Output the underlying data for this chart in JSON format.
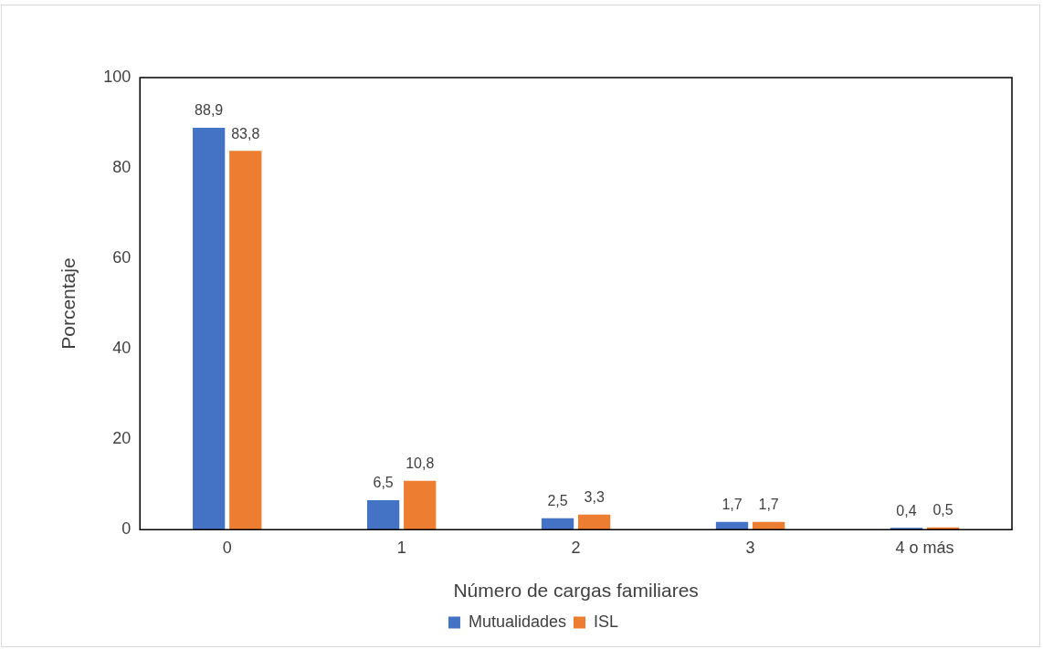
{
  "chart_data": {
    "type": "bar",
    "xlabel": "Número de cargas familiares",
    "ylabel": "Porcentaje",
    "categories": [
      "0",
      "1",
      "2",
      "3",
      "4 o más"
    ],
    "series": [
      {
        "name": "Mutualidades",
        "color": "#4472c4",
        "values": [
          88.9,
          6.5,
          2.5,
          1.7,
          0.4
        ],
        "value_labels": [
          "88,9",
          "6,5",
          "2,5",
          "1,7",
          "0,4"
        ]
      },
      {
        "name": "ISL",
        "color": "#ed7d31",
        "values": [
          83.8,
          10.8,
          3.3,
          1.7,
          0.5
        ],
        "value_labels": [
          "83,8",
          "10,8",
          "3,3",
          "1,7",
          "0,5"
        ]
      }
    ],
    "ylim": [
      0,
      100
    ],
    "yticks": [
      0,
      20,
      40,
      60,
      80,
      100
    ],
    "grid": false,
    "legend": "bottom"
  }
}
